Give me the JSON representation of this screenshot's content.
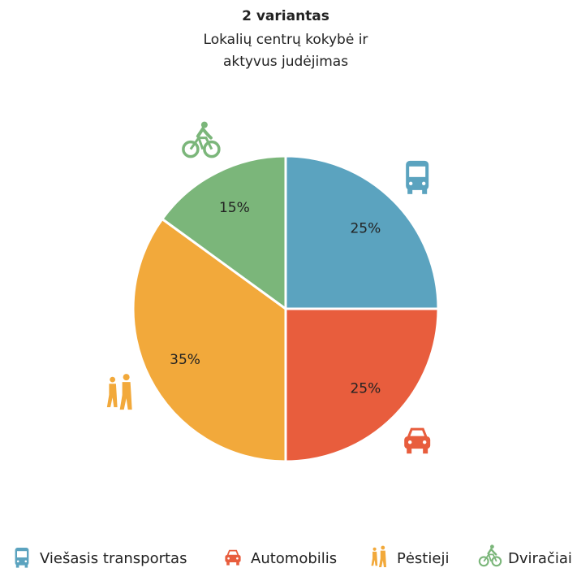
{
  "chart_data": {
    "type": "pie",
    "title": "2 variantas",
    "subtitle": [
      "Lokalių centrų kokybė ir",
      "aktyvus judėjimas"
    ],
    "categories": [
      "Viešasis transportas",
      "Automobilis",
      "Pėstieji",
      "Dviračiai"
    ],
    "values": [
      25,
      25,
      35,
      15
    ],
    "value_labels": [
      "25%",
      "25%",
      "35%",
      "15%"
    ],
    "colors": [
      "#5ba3bf",
      "#e85d3d",
      "#f2a93b",
      "#7bb67a"
    ]
  }
}
